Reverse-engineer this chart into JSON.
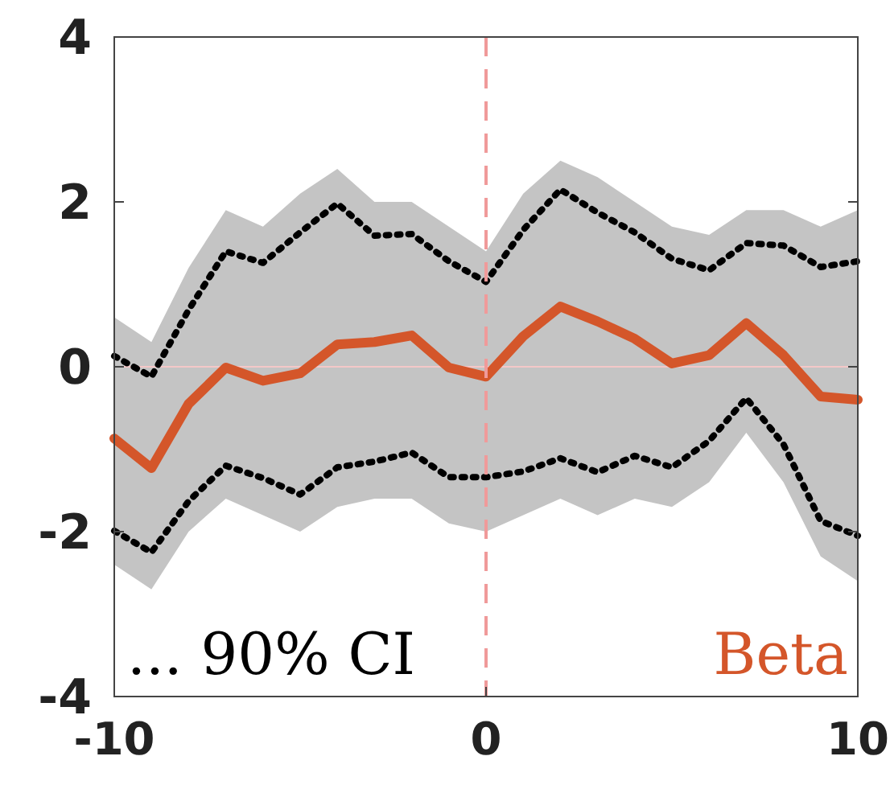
{
  "chart_data": {
    "type": "line",
    "x": [
      -10,
      -9,
      -8,
      -7,
      -6,
      -5,
      -4,
      -3,
      -2,
      -1,
      0,
      1,
      2,
      3,
      4,
      5,
      6,
      7,
      8,
      9,
      10
    ],
    "series": [
      {
        "name": "Beta",
        "color": "#d4562a",
        "values": [
          -0.87,
          -1.23,
          -0.45,
          -0.01,
          -0.17,
          -0.08,
          0.27,
          0.3,
          0.38,
          -0.01,
          -0.12,
          0.37,
          0.73,
          0.55,
          0.34,
          0.04,
          0.14,
          0.53,
          0.14,
          -0.36,
          -0.4
        ],
        "lower": [
          -2.4,
          -2.7,
          -2.0,
          -1.6,
          -1.8,
          -2.0,
          -1.7,
          -1.6,
          -1.6,
          -1.9,
          -2.0,
          -1.8,
          -1.6,
          -1.8,
          -1.6,
          -1.7,
          -1.4,
          -0.8,
          -1.4,
          -2.3,
          -2.6
        ],
        "upper": [
          0.6,
          0.3,
          1.2,
          1.9,
          1.7,
          2.1,
          2.4,
          2.0,
          2.0,
          1.7,
          1.4,
          2.1,
          2.5,
          2.3,
          2.0,
          1.7,
          1.6,
          1.9,
          1.9,
          1.7,
          1.9
        ],
        "line_style": "solid"
      },
      {
        "color": "#000000",
        "values": [
          0.13,
          -0.12,
          0.69,
          1.4,
          1.26,
          1.63,
          1.98,
          1.59,
          1.61,
          1.28,
          1.03,
          1.66,
          2.15,
          1.87,
          1.63,
          1.31,
          1.17,
          1.5,
          1.47,
          1.21,
          1.28
        ],
        "line_style": "dotted"
      },
      {
        "color": "#000000",
        "values": [
          -1.99,
          -2.25,
          -1.63,
          -1.2,
          -1.35,
          -1.55,
          -1.22,
          -1.15,
          -1.04,
          -1.34,
          -1.34,
          -1.27,
          -1.11,
          -1.28,
          -1.08,
          -1.22,
          -0.9,
          -0.38,
          -0.94,
          -1.87,
          -2.05
        ],
        "line_style": "dotted"
      }
    ],
    "xlim": [
      -10,
      10
    ],
    "xticks": [
      -10,
      0,
      10
    ],
    "ylim": [
      -4,
      4
    ],
    "yticks": [
      -4,
      -2,
      0,
      2,
      4
    ],
    "ref_lines": [
      {
        "axis": "x",
        "value": 0,
        "color": "#f09a9a",
        "line_style": "dashed"
      },
      {
        "axis": "y",
        "value": 0,
        "color": "#f4c8c8",
        "line_style": "solid"
      }
    ],
    "annotations": [
      "... 90% CI"
    ],
    "marker": "none",
    "grid": false
  }
}
